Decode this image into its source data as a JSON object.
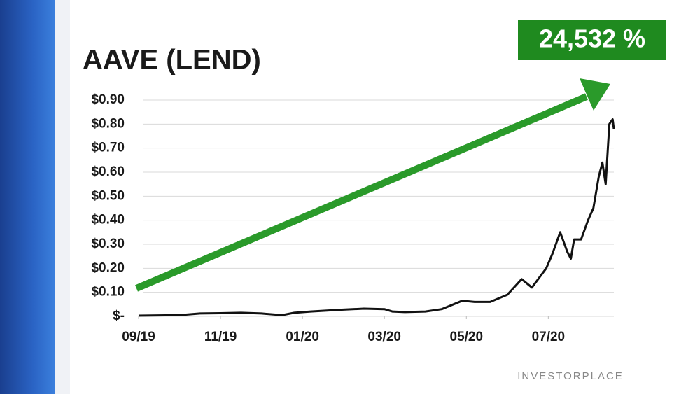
{
  "chart_data": {
    "type": "line",
    "title": "AAVE (LEND)",
    "annotation": "24,532 %",
    "brand": "INVESTORPLACE",
    "x": [
      0,
      1,
      1.5,
      2,
      2.5,
      3,
      3.5,
      3.8,
      4.2,
      5,
      5.5,
      6,
      6.2,
      6.5,
      7,
      7.4,
      7.9,
      8.2,
      8.58,
      9.0,
      9.35,
      9.6,
      9.95,
      10.1,
      10.29,
      10.46,
      10.55,
      10.63,
      10.8,
      10.97,
      11.1,
      11.23,
      11.32,
      11.4,
      11.49,
      11.57,
      11.6
    ],
    "series": [
      {
        "name": "AAVE (LEND)",
        "color": "#111111",
        "values": [
          0.003,
          0.005,
          0.012,
          0.013,
          0.015,
          0.012,
          0.005,
          0.015,
          0.02,
          0.028,
          0.032,
          0.03,
          0.02,
          0.018,
          0.02,
          0.03,
          0.065,
          0.06,
          0.06,
          0.09,
          0.155,
          0.12,
          0.2,
          0.26,
          0.35,
          0.27,
          0.24,
          0.32,
          0.32,
          0.4,
          0.45,
          0.58,
          0.64,
          0.55,
          0.8,
          0.82,
          0.78
        ]
      }
    ],
    "xlim": [
      0,
      11.6
    ],
    "xticks": [
      {
        "value": 0,
        "label": "09/19"
      },
      {
        "value": 2,
        "label": "11/19"
      },
      {
        "value": 4,
        "label": "01/20"
      },
      {
        "value": 6,
        "label": "03/20"
      },
      {
        "value": 8,
        "label": "05/20"
      },
      {
        "value": 10,
        "label": "07/20"
      }
    ],
    "ylim": [
      0,
      0.9
    ],
    "yticks": [
      {
        "value": 0,
        "label": "$-"
      },
      {
        "value": 0.1,
        "label": "$0.10"
      },
      {
        "value": 0.2,
        "label": "$0.20"
      },
      {
        "value": 0.3,
        "label": "$0.30"
      },
      {
        "value": 0.4,
        "label": "$0.40"
      },
      {
        "value": 0.5,
        "label": "$0.50"
      },
      {
        "value": 0.6,
        "label": "$0.60"
      },
      {
        "value": 0.7,
        "label": "$0.70"
      },
      {
        "value": 0.8,
        "label": "$0.80"
      },
      {
        "value": 0.9,
        "label": "$0.90"
      }
    ],
    "grid": true
  }
}
